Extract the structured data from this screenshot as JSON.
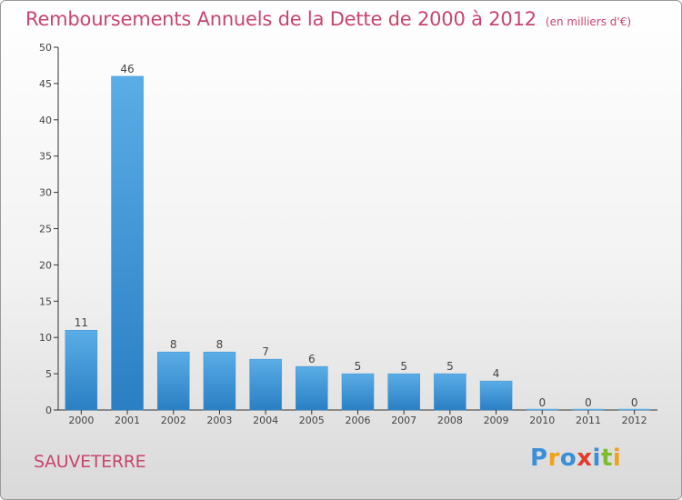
{
  "header": {
    "title": "Remboursements Annuels de la Dette de 2000 à 2012",
    "unit": "(en milliers d'€)"
  },
  "commune": "SAUVETERRE",
  "logo": {
    "text": "Proxiti",
    "letters": [
      {
        "char": "P",
        "color": "#3a8fd8"
      },
      {
        "char": "r",
        "color": "#f0a21a"
      },
      {
        "char": "o",
        "color": "#3a8fd8"
      },
      {
        "char": "x",
        "color": "#e23b2e"
      },
      {
        "char": "i",
        "color": "#3a8fd8"
      },
      {
        "char": "t",
        "color": "#7dbd2c"
      },
      {
        "char": "i",
        "color": "#f0a21a"
      }
    ]
  },
  "chart_data": {
    "type": "bar",
    "title": "Remboursements Annuels de la Dette de 2000 à 2012",
    "subtitle": "(en milliers d'€)",
    "categories": [
      "2000",
      "2001",
      "2002",
      "2003",
      "2004",
      "2005",
      "2006",
      "2007",
      "2008",
      "2009",
      "2010",
      "2011",
      "2012"
    ],
    "values": [
      11,
      46,
      8,
      8,
      7,
      6,
      5,
      5,
      5,
      4,
      0,
      0,
      0
    ],
    "data_labels": [
      "11",
      "46",
      "8",
      "8",
      "7",
      "6",
      "5",
      "5",
      "5",
      "4",
      "0",
      "0",
      "0"
    ],
    "ylim": [
      0,
      50
    ],
    "yticks": [
      0,
      5,
      10,
      15,
      20,
      25,
      30,
      35,
      40,
      45,
      50
    ],
    "grid": false,
    "legend": "none",
    "colors": {
      "bar_light": "#5aade6",
      "bar_dark": "#2a7fc4",
      "axis": "#333333",
      "title": "#c8456d"
    }
  }
}
